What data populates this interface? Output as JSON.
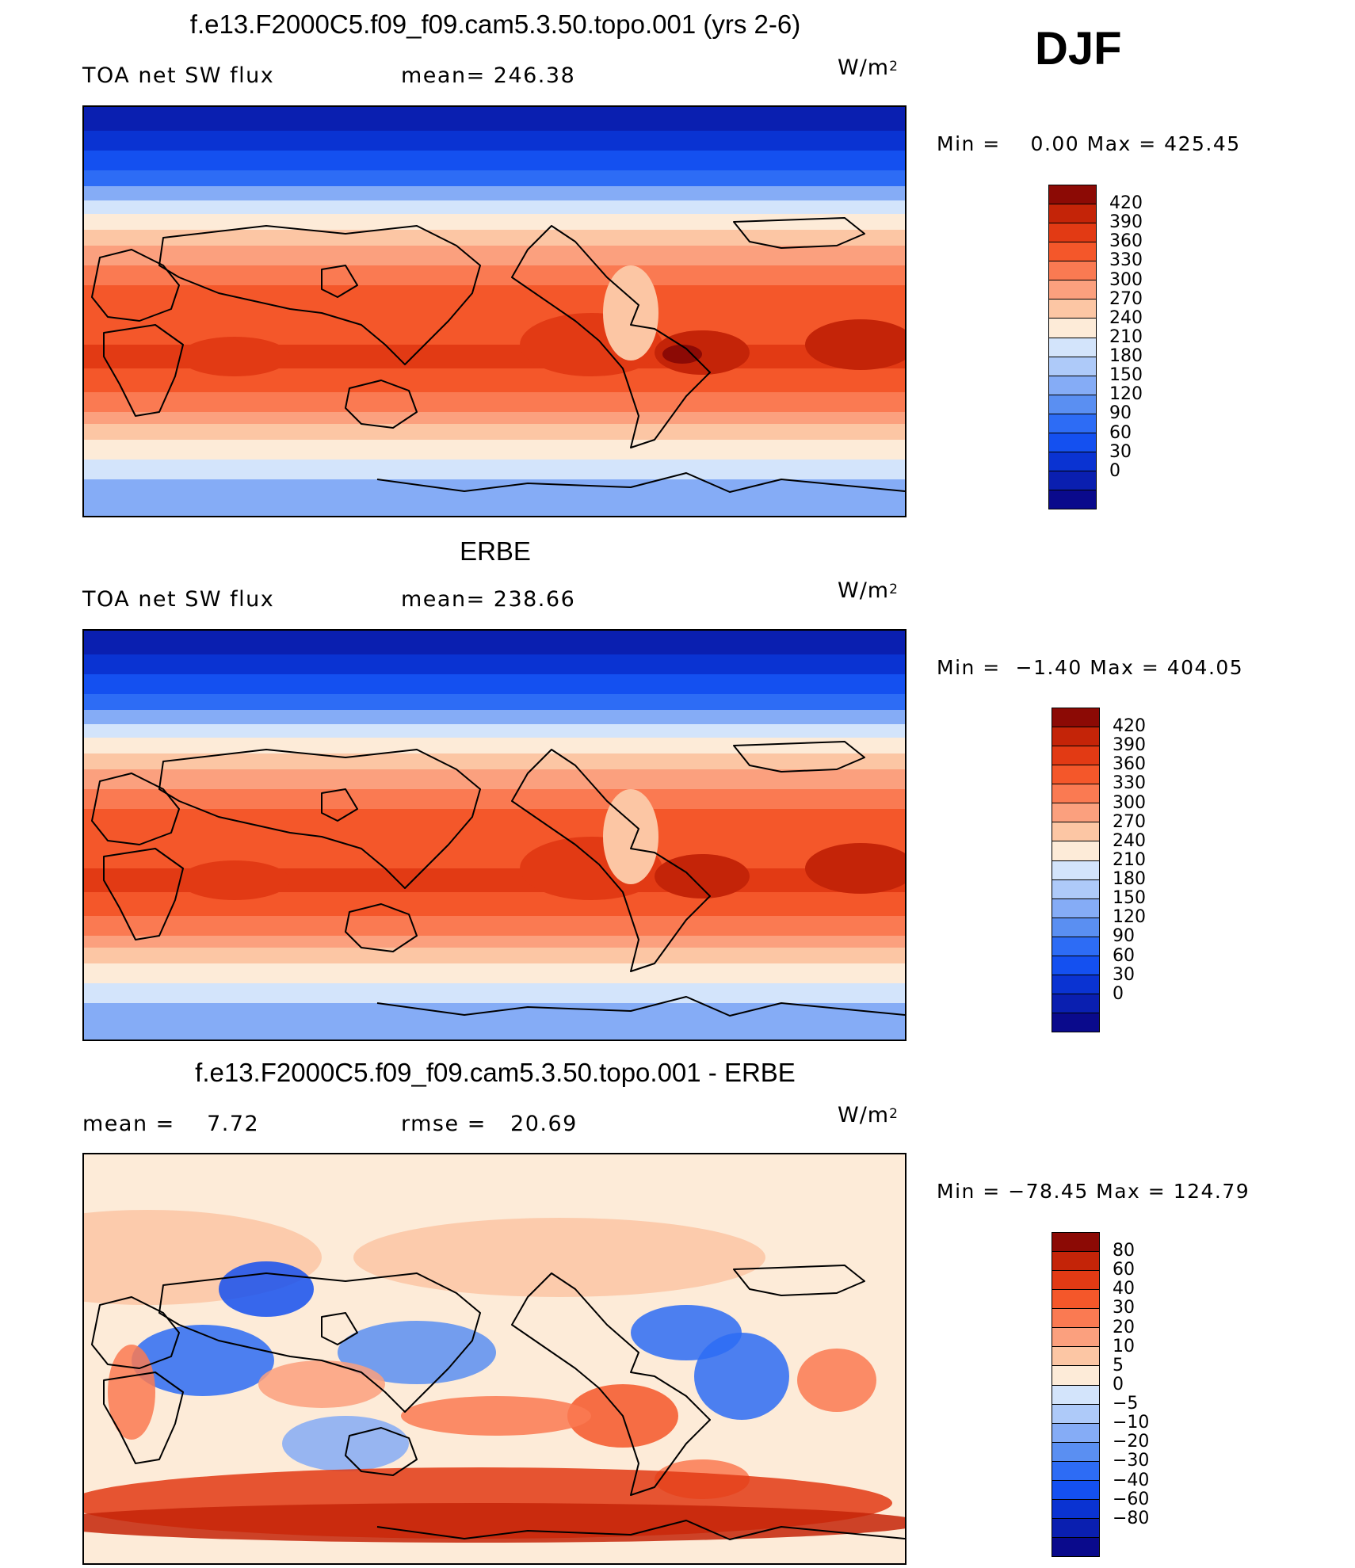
{
  "season": "DJF",
  "units": {
    "prefix": "W/m",
    "sup": "2"
  },
  "panels": [
    {
      "title": "f.e13.F2000C5.f09_f09.cam5.3.50.topo.001 (yrs 2-6)",
      "left_label": "TOA net SW flux",
      "mid_label": "mean= 246.38",
      "minmax": "Min =    0.00 Max = 425.45",
      "map_icon": "world-map-shortwave-flux",
      "colorbar": {
        "colors": [
          "#0a0a8c",
          "#0a1fb0",
          "#0a33d2",
          "#1450f0",
          "#2d6cf5",
          "#5a8ff2",
          "#85acf6",
          "#aecaf9",
          "#d3e4fb",
          "#fdebd8",
          "#fcc6a4",
          "#fba07e",
          "#fa7a52",
          "#f4572a",
          "#e23a14",
          "#c42408",
          "#8c0a05"
        ],
        "labels": [
          "420",
          "390",
          "360",
          "330",
          "300",
          "270",
          "240",
          "210",
          "180",
          "150",
          "120",
          "90",
          "60",
          "30",
          "0"
        ]
      }
    },
    {
      "title": "ERBE",
      "left_label": "TOA net SW flux",
      "mid_label": "mean= 238.66",
      "minmax": "Min =  −1.40 Max = 404.05",
      "map_icon": "world-map-shortwave-flux",
      "colorbar": {
        "colors": [
          "#0a0a8c",
          "#0a1fb0",
          "#0a33d2",
          "#1450f0",
          "#2d6cf5",
          "#5a8ff2",
          "#85acf6",
          "#aecaf9",
          "#d3e4fb",
          "#fdebd8",
          "#fcc6a4",
          "#fba07e",
          "#fa7a52",
          "#f4572a",
          "#e23a14",
          "#c42408",
          "#8c0a05"
        ],
        "labels": [
          "420",
          "390",
          "360",
          "330",
          "300",
          "270",
          "240",
          "210",
          "180",
          "150",
          "120",
          "90",
          "60",
          "30",
          "0"
        ]
      }
    },
    {
      "title": "f.e13.F2000C5.f09_f09.cam5.3.50.topo.001 - ERBE",
      "left_label": "mean =    7.72",
      "mid_label": "rmse =   20.69",
      "minmax": "Min = −78.45 Max = 124.79",
      "map_icon": "world-map-difference",
      "colorbar": {
        "colors": [
          "#0a0a8c",
          "#0a1fb0",
          "#0a33d2",
          "#1450f0",
          "#2d6cf5",
          "#5a8ff2",
          "#85acf6",
          "#aecaf9",
          "#d3e4fb",
          "#fdebd8",
          "#fcc6a4",
          "#fba07e",
          "#fa7a52",
          "#f4572a",
          "#e23a14",
          "#c42408",
          "#8c0a05"
        ],
        "labels": [
          "80",
          "60",
          "40",
          "30",
          "20",
          "10",
          "5",
          "0",
          "−5",
          "−10",
          "−20",
          "−30",
          "−40",
          "−60",
          "−80"
        ]
      }
    }
  ]
}
